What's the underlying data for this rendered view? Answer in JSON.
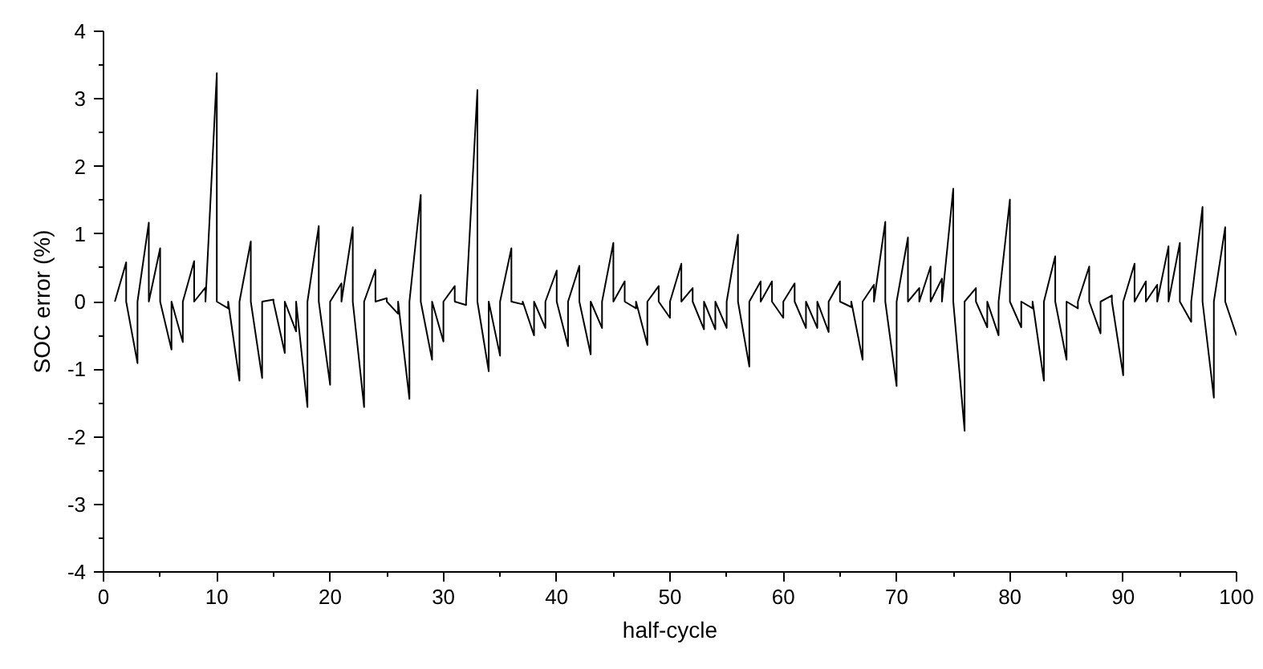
{
  "chart_data": {
    "type": "line",
    "xlabel": "half-cycle",
    "ylabel": "SOC error (%)",
    "xlim": [
      0,
      100
    ],
    "xticks": [
      0,
      10,
      20,
      30,
      40,
      50,
      60,
      70,
      80,
      90,
      100
    ],
    "ylim": [
      -4,
      4
    ],
    "yticks": [
      -4,
      -3,
      -2,
      -1,
      0,
      1,
      2,
      3,
      4
    ],
    "grid": false,
    "marker": "none",
    "line_style": "solid",
    "series": [
      {
        "color": "#000000",
        "x": [
          1,
          2,
          2,
          3,
          3,
          4,
          4,
          5,
          5,
          6,
          6,
          7,
          7,
          8,
          8,
          9,
          9,
          10,
          10,
          11,
          11,
          12,
          12,
          13,
          13,
          14,
          14,
          15,
          15,
          16,
          16,
          17,
          17,
          18,
          18,
          19,
          19,
          20,
          20,
          21,
          21,
          22,
          22,
          23,
          23,
          24,
          24,
          25,
          25,
          26,
          26,
          27,
          27,
          28,
          28,
          29,
          29,
          30,
          30,
          31,
          31,
          32,
          32,
          33,
          33,
          34,
          34,
          35,
          35,
          36,
          36,
          37,
          37,
          38,
          38,
          39,
          39,
          40,
          40,
          41,
          41,
          42,
          42,
          43,
          43,
          44,
          44,
          45,
          45,
          46,
          46,
          47,
          47,
          48,
          48,
          49,
          49,
          50,
          50,
          51,
          51,
          52,
          52,
          53,
          53,
          54,
          54,
          55,
          55,
          56,
          56,
          57,
          57,
          58,
          58,
          59,
          59,
          60,
          60,
          61,
          61,
          62,
          62,
          63,
          63,
          64,
          64,
          65,
          65,
          66,
          66,
          67,
          67,
          68,
          68,
          69,
          69,
          70,
          70,
          71,
          71,
          72,
          72,
          73,
          73,
          74,
          74,
          75,
          75,
          76,
          76,
          77,
          77,
          78,
          78,
          79,
          79,
          80,
          80,
          81,
          81,
          82,
          82,
          83,
          83,
          84,
          84,
          85,
          85,
          86,
          86,
          87,
          87,
          88,
          88,
          89,
          89,
          90,
          90,
          91,
          91,
          92,
          92,
          93,
          93,
          94,
          94,
          95,
          95,
          96,
          96,
          97,
          97,
          98,
          98,
          99,
          99,
          100
        ],
        "values": [
          0,
          0.58,
          0,
          -0.91,
          0,
          1.17,
          0,
          0.79,
          0,
          -0.71,
          0,
          -0.6,
          0,
          0.6,
          0,
          0.21,
          0,
          3.38,
          0,
          -0.1,
          0,
          -1.17,
          0,
          0.89,
          0,
          -1.13,
          0,
          0.03,
          0,
          -0.76,
          0,
          -0.44,
          0,
          -1.56,
          0,
          1.12,
          0,
          -1.23,
          0,
          0.27,
          0,
          1.1,
          0,
          -1.56,
          0,
          0.47,
          0,
          0.05,
          0,
          -0.18,
          0,
          -1.44,
          0,
          1.58,
          0,
          -0.86,
          0,
          -0.59,
          0,
          0.23,
          0,
          -0.05,
          0,
          3.13,
          0,
          -1.03,
          0,
          -0.8,
          0,
          0.79,
          0,
          -0.04,
          0,
          -0.5,
          0,
          -0.39,
          0,
          0.46,
          0,
          -0.66,
          0,
          0.53,
          0,
          -0.78,
          0,
          -0.39,
          0,
          0.87,
          0,
          0.3,
          0,
          -0.1,
          0,
          -0.64,
          0,
          0.23,
          0,
          -0.24,
          0,
          0.56,
          0,
          0.2,
          0,
          -0.41,
          0,
          -0.41,
          0,
          -0.39,
          0,
          0.99,
          0,
          -0.96,
          0,
          0.3,
          0,
          0.3,
          0,
          -0.24,
          0,
          0.27,
          0,
          -0.39,
          0,
          -0.39,
          0,
          -0.45,
          0,
          0.3,
          0,
          -0.08,
          0,
          -0.86,
          0,
          0.25,
          0,
          1.18,
          0,
          -1.25,
          0,
          0.95,
          0,
          0.2,
          0,
          0.52,
          0,
          0.34,
          0,
          1.67,
          0,
          -1.91,
          0,
          0.2,
          0,
          -0.38,
          0,
          -0.5,
          0,
          1.51,
          0,
          -0.38,
          0,
          -0.1,
          0,
          -1.17,
          0,
          0.67,
          0,
          -0.86,
          0,
          -0.1,
          0,
          0.52,
          0,
          -0.47,
          0,
          0.09,
          0,
          -1.09,
          0,
          0.56,
          0,
          0.3,
          0,
          0.25,
          0,
          0.82,
          0,
          0.87,
          0,
          -0.3,
          0,
          1.4,
          0,
          -1.42,
          0,
          1.1,
          0,
          -0.5
        ]
      }
    ]
  }
}
